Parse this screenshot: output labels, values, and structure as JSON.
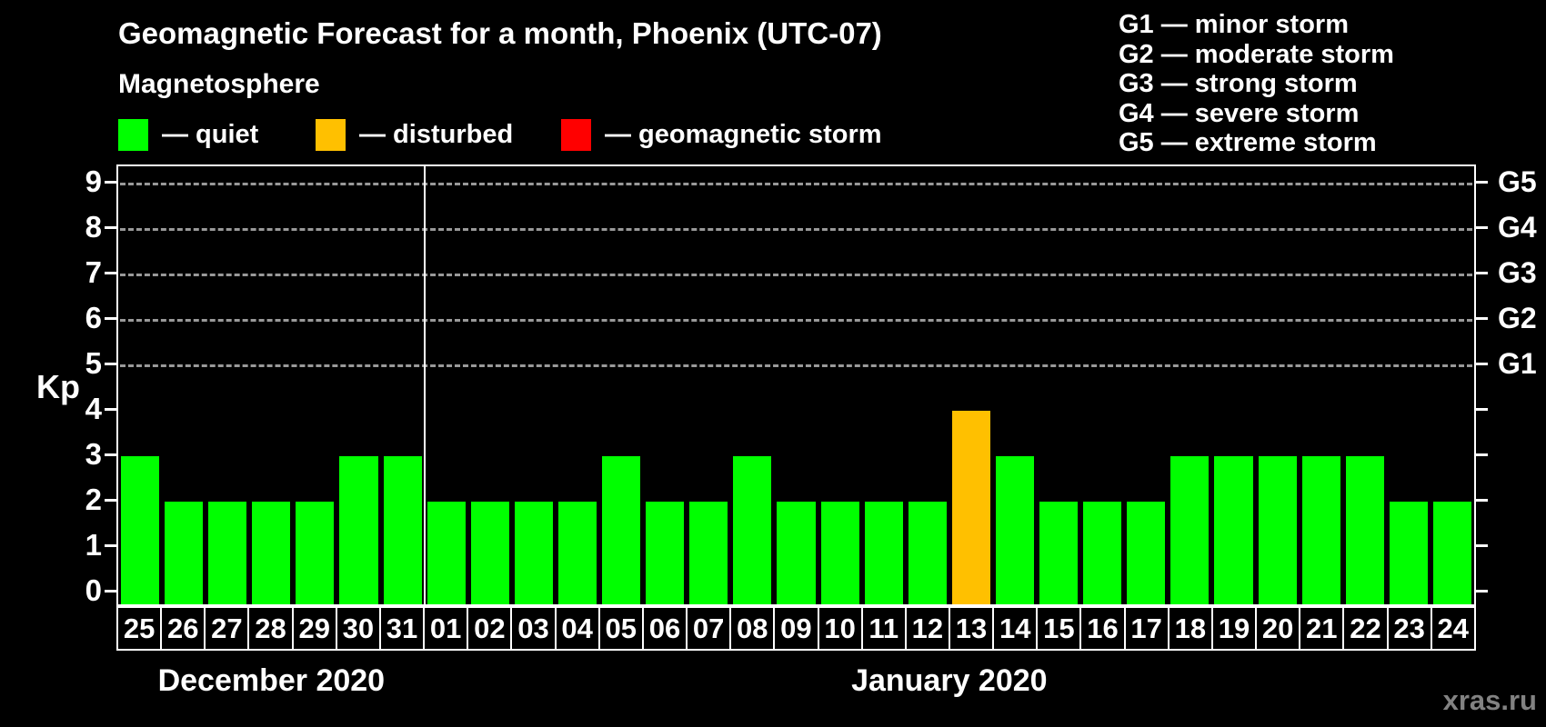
{
  "title": "Geomagnetic Forecast for a month, Phoenix (UTC-07)",
  "legend": {
    "heading": "Magnetosphere",
    "items": [
      {
        "name": "quiet",
        "label": "— quiet",
        "color": "#00ff00"
      },
      {
        "name": "disturbed",
        "label": "— disturbed",
        "color": "#ffc000"
      },
      {
        "name": "storm",
        "label": "— geomagnetic storm",
        "color": "#ff0000"
      }
    ]
  },
  "g_scale_legend": [
    "G1 — minor storm",
    "G2 — moderate storm",
    "G3 — strong storm",
    "G4 — severe storm",
    "G5 — extreme storm"
  ],
  "watermark": "xras.ru",
  "chart_data": {
    "type": "bar",
    "ylabel": "Kp",
    "ylim": [
      0,
      9
    ],
    "yticks": [
      "0",
      "1",
      "2",
      "3",
      "4",
      "5",
      "6",
      "7",
      "8",
      "9"
    ],
    "right_axis": [
      {
        "kp": 5,
        "label": "G1"
      },
      {
        "kp": 6,
        "label": "G2"
      },
      {
        "kp": 7,
        "label": "G3"
      },
      {
        "kp": 8,
        "label": "G4"
      },
      {
        "kp": 9,
        "label": "G5"
      }
    ],
    "grid_kp_levels": [
      5,
      6,
      7,
      8,
      9
    ],
    "state_colors": {
      "quiet": "#00ff00",
      "disturbed": "#ffc000",
      "storm": "#ff0000"
    },
    "months": [
      {
        "label": "December 2020",
        "days": [
          "25",
          "26",
          "27",
          "28",
          "29",
          "30",
          "31"
        ],
        "values": [
          3,
          2,
          2,
          2,
          2,
          3,
          3
        ],
        "states": [
          "quiet",
          "quiet",
          "quiet",
          "quiet",
          "quiet",
          "quiet",
          "quiet"
        ]
      },
      {
        "label": "January 2020",
        "days": [
          "01",
          "02",
          "03",
          "04",
          "05",
          "06",
          "07",
          "08",
          "09",
          "10",
          "11",
          "12",
          "13",
          "14",
          "15",
          "16",
          "17",
          "18",
          "19",
          "20",
          "21",
          "22",
          "23",
          "24"
        ],
        "values": [
          2,
          2,
          2,
          2,
          3,
          2,
          2,
          3,
          2,
          2,
          2,
          2,
          4,
          3,
          2,
          2,
          2,
          3,
          3,
          3,
          3,
          3,
          2,
          2
        ],
        "states": [
          "quiet",
          "quiet",
          "quiet",
          "quiet",
          "quiet",
          "quiet",
          "quiet",
          "quiet",
          "quiet",
          "quiet",
          "quiet",
          "quiet",
          "disturbed",
          "quiet",
          "quiet",
          "quiet",
          "quiet",
          "quiet",
          "quiet",
          "quiet",
          "quiet",
          "quiet",
          "quiet",
          "quiet"
        ]
      }
    ]
  }
}
